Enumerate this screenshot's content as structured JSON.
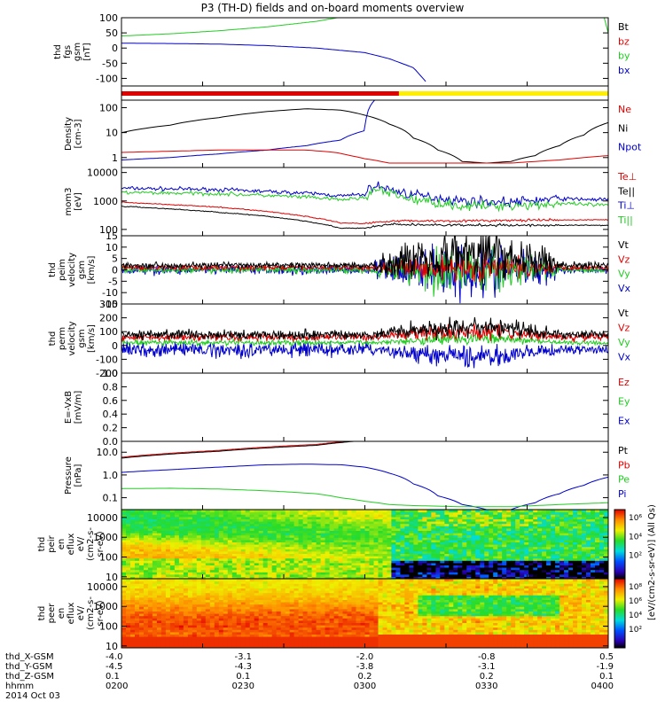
{
  "title": "P3 (TH-D) fields and on-board moments overview",
  "colors": {
    "black": "#000000",
    "red": "#e00000",
    "green": "#22cc22",
    "blue": "#0000cc",
    "yellow": "#ffee00"
  },
  "chart_data": [
    {
      "id": "fgs",
      "type": "line",
      "ylabel": [
        "thd",
        "fgs",
        "gsm",
        "[nT]"
      ],
      "ylim": [
        -125,
        100
      ],
      "yticks": [
        100,
        50,
        0,
        -50,
        -100
      ],
      "legend": [
        {
          "name": "Bt",
          "color": "black"
        },
        {
          "name": "bz",
          "color": "red"
        },
        {
          "name": "by",
          "color": "green"
        },
        {
          "name": "bx",
          "color": "blue"
        }
      ],
      "series": [
        {
          "name": "by",
          "color": "green",
          "x": [
            0,
            0.1,
            0.2,
            0.3,
            0.4,
            0.48
          ],
          "y": [
            40,
            47,
            57,
            70,
            88,
            110
          ]
        },
        {
          "name": "bx",
          "color": "blue",
          "x": [
            0,
            0.1,
            0.2,
            0.3,
            0.4,
            0.5,
            0.55,
            0.6,
            0.625
          ],
          "y": [
            16,
            15,
            13,
            8,
            0,
            -15,
            -35,
            -65,
            -110
          ]
        },
        {
          "name": "by",
          "color": "green",
          "x": [
            0.99,
            1.0
          ],
          "y": [
            110,
            50
          ]
        }
      ]
    },
    {
      "id": "flag",
      "type": "bar",
      "segments": [
        {
          "x0": 0,
          "x1": 0.57,
          "color": "red"
        },
        {
          "x0": 0.57,
          "x1": 1,
          "color": "yellow"
        }
      ]
    },
    {
      "id": "density",
      "type": "line",
      "log": true,
      "ylabel": [
        "Density",
        "[cm-3]"
      ],
      "ylim": [
        0.4,
        200
      ],
      "yticks": [
        100,
        10,
        1
      ],
      "legend": [
        {
          "name": "Ne",
          "color": "red"
        },
        {
          "name": "Ni",
          "color": "black"
        },
        {
          "name": "Npot",
          "color": "blue"
        }
      ],
      "series": [
        {
          "name": "Ni",
          "color": "black",
          "x": [
            0,
            0.1,
            0.2,
            0.3,
            0.38,
            0.45,
            0.5,
            0.55,
            0.6,
            0.65,
            0.7,
            0.75,
            0.8,
            0.85,
            0.9,
            0.95,
            1.0
          ],
          "y": [
            10,
            20,
            40,
            70,
            90,
            80,
            50,
            22,
            6,
            2,
            0.7,
            0.6,
            0.7,
            1.2,
            3,
            8,
            25
          ]
        },
        {
          "name": "Npot",
          "color": "blue",
          "x": [
            0,
            0.1,
            0.2,
            0.3,
            0.38,
            0.45,
            0.5,
            0.52
          ],
          "y": [
            0.8,
            1,
            1.4,
            2,
            3,
            5,
            12,
            200
          ]
        },
        {
          "name": "Ne",
          "color": "red",
          "x": [
            0,
            0.1,
            0.2,
            0.3,
            0.38,
            0.44,
            0.47,
            0.5,
            0.55,
            0.6,
            0.7,
            0.8,
            0.9,
            1.0
          ],
          "y": [
            1.6,
            1.8,
            2,
            2,
            2,
            1.6,
            1.2,
            0.9,
            0.6,
            0.6,
            0.6,
            0.6,
            0.8,
            1.2
          ]
        }
      ]
    },
    {
      "id": "mom",
      "type": "line",
      "log": true,
      "ylabel": [
        "mom3",
        "[eV]"
      ],
      "ylim": [
        60,
        15000
      ],
      "yticks": [
        10000,
        1000,
        100
      ],
      "legend": [
        {
          "name": "Te⊥",
          "color": "red"
        },
        {
          "name": "Te||",
          "color": "black"
        },
        {
          "name": "Ti⊥",
          "color": "blue"
        },
        {
          "name": "Ti||",
          "color": "green"
        }
      ],
      "series": [
        {
          "name": "Ti⊥",
          "color": "blue",
          "x": [
            0,
            0.2,
            0.4,
            0.45,
            0.5,
            0.52,
            0.55,
            0.6,
            0.7,
            0.8,
            0.9,
            1.0
          ],
          "y": [
            2800,
            2500,
            1800,
            1500,
            1700,
            3500,
            2500,
            1600,
            1000,
            900,
            1200,
            1100
          ],
          "noise": 0.12
        },
        {
          "name": "Ti||",
          "color": "green",
          "x": [
            0,
            0.2,
            0.4,
            0.45,
            0.5,
            0.52,
            0.55,
            0.6,
            0.7,
            0.8,
            0.9,
            1.0
          ],
          "y": [
            2000,
            1800,
            1300,
            1100,
            1300,
            2500,
            1800,
            1100,
            650,
            700,
            800,
            700
          ],
          "noise": 0.12
        },
        {
          "name": "Te⊥",
          "color": "red",
          "x": [
            0,
            0.2,
            0.4,
            0.45,
            0.5,
            0.55,
            0.7,
            1.0
          ],
          "y": [
            900,
            600,
            250,
            170,
            160,
            200,
            200,
            220
          ],
          "noise": 0.03
        },
        {
          "name": "Te||",
          "color": "black",
          "x": [
            0,
            0.2,
            0.4,
            0.45,
            0.5,
            0.55,
            0.7,
            1.0
          ],
          "y": [
            650,
            400,
            170,
            110,
            110,
            150,
            140,
            140
          ],
          "noise": 0.03
        }
      ]
    },
    {
      "id": "peim",
      "type": "line",
      "ylabel": [
        "thd",
        "peim",
        "velocity",
        "gsm",
        "[km/s]"
      ],
      "ylim": [
        -15,
        15
      ],
      "yticks": [
        15,
        10,
        5,
        0,
        -5,
        -10,
        -15
      ],
      "legend": [
        {
          "name": "Vt",
          "color": "black"
        },
        {
          "name": "Vz",
          "color": "red"
        },
        {
          "name": "Vy",
          "color": "green"
        },
        {
          "name": "Vx",
          "color": "blue"
        }
      ],
      "series": [
        {
          "name": "Vx",
          "color": "blue",
          "base": 0,
          "amp": [
            1.5,
            6,
            1.2
          ]
        },
        {
          "name": "Vy",
          "color": "green",
          "base": 0,
          "amp": [
            1.2,
            5,
            1
          ]
        },
        {
          "name": "Vz",
          "color": "red",
          "base": 1,
          "amp": [
            0.8,
            3,
            0.8
          ]
        },
        {
          "name": "Vt",
          "color": "black",
          "base": 2,
          "amp": [
            1,
            6,
            1.2
          ],
          "bump": 5
        }
      ]
    },
    {
      "id": "perm",
      "type": "line",
      "ylabel": [
        "thd",
        "perm",
        "velocity",
        "gsm",
        "[km/s]"
      ],
      "ylim": [
        -200,
        300
      ],
      "yticks": [
        300,
        200,
        100,
        0,
        -100,
        -200
      ],
      "legend": [
        {
          "name": "Vt",
          "color": "black"
        },
        {
          "name": "Vz",
          "color": "red"
        },
        {
          "name": "Vy",
          "color": "green"
        },
        {
          "name": "Vx",
          "color": "blue"
        }
      ],
      "series": [
        {
          "name": "Vx",
          "color": "blue",
          "base": -30,
          "amp": [
            40,
            40,
            25
          ],
          "shift": [
            0,
            -50,
            0
          ]
        },
        {
          "name": "Vy",
          "color": "green",
          "base": 20,
          "amp": [
            15,
            20,
            15
          ],
          "shift": [
            0,
            30,
            0
          ]
        },
        {
          "name": "Vz",
          "color": "red",
          "base": 60,
          "amp": [
            20,
            30,
            20
          ],
          "shift": [
            0,
            40,
            0
          ]
        },
        {
          "name": "Vt",
          "color": "black",
          "base": 80,
          "amp": [
            25,
            40,
            20
          ],
          "shift": [
            0,
            50,
            0
          ]
        }
      ]
    },
    {
      "id": "efield",
      "type": "line",
      "ylabel": [
        "E=-VxB",
        "[mV/m]"
      ],
      "ylim": [
        0,
        1
      ],
      "yticks": [
        1.0,
        0.8,
        0.6,
        0.4,
        0.2,
        0.0
      ],
      "legend": [
        {
          "name": "Ez",
          "color": "red"
        },
        {
          "name": "Ey",
          "color": "green"
        },
        {
          "name": "Ex",
          "color": "blue"
        }
      ],
      "series": []
    },
    {
      "id": "pressure",
      "type": "line",
      "log": true,
      "ylabel": [
        "Pressure",
        "[nPa]"
      ],
      "ylim": [
        0.03,
        30
      ],
      "yticks": [
        10,
        1,
        0.1
      ],
      "yticklabels": [
        "10.0",
        "1.0",
        "0.1"
      ],
      "legend": [
        {
          "name": "Pt",
          "color": "black"
        },
        {
          "name": "Pb",
          "color": "red"
        },
        {
          "name": "Pe",
          "color": "green"
        },
        {
          "name": "Pi",
          "color": "blue"
        }
      ],
      "series": [
        {
          "name": "Pb",
          "color": "red",
          "x": [
            0,
            0.2,
            0.4,
            0.5
          ],
          "y": [
            6,
            12,
            22,
            35
          ]
        },
        {
          "name": "Pt",
          "color": "black",
          "x": [
            0,
            0.2,
            0.4,
            0.5
          ],
          "y": [
            5.5,
            11,
            20,
            33
          ]
        },
        {
          "name": "Pi",
          "color": "blue",
          "x": [
            0,
            0.1,
            0.2,
            0.3,
            0.38,
            0.45,
            0.5,
            0.55,
            0.6,
            0.65,
            0.7,
            0.75,
            0.8,
            0.85,
            0.9,
            0.95,
            1.0
          ],
          "y": [
            1.3,
            1.7,
            2.2,
            2.8,
            3,
            2.8,
            2.2,
            1.2,
            0.4,
            0.12,
            0.05,
            0.03,
            0.03,
            0.06,
            0.15,
            0.35,
            0.8
          ]
        },
        {
          "name": "Pe",
          "color": "green",
          "x": [
            0,
            0.1,
            0.2,
            0.3,
            0.4,
            0.45,
            0.5,
            0.55,
            0.6,
            0.7,
            0.8,
            0.9,
            1.0
          ],
          "y": [
            0.25,
            0.26,
            0.24,
            0.2,
            0.15,
            0.1,
            0.07,
            0.05,
            0.045,
            0.04,
            0.04,
            0.05,
            0.06
          ]
        }
      ]
    },
    {
      "id": "peir",
      "type": "heatmap",
      "ylabel": [
        "thd",
        "peir",
        "en",
        "eflux",
        "eV/",
        "(cm2-s-",
        "sr-eV)"
      ],
      "log": true,
      "ylim": [
        8,
        25000
      ],
      "yticks": [
        10000,
        1000,
        100,
        10
      ]
    },
    {
      "id": "peer",
      "type": "heatmap",
      "ylabel": [
        "thd",
        "peer",
        "en",
        "eflux",
        "eV/",
        "(cm2-s-",
        "sr-eV)"
      ],
      "log": true,
      "ylim": [
        8,
        25000
      ],
      "yticks": [
        10000,
        1000,
        100,
        10
      ]
    }
  ],
  "colorbar": {
    "label": "[eV/(cm2-s-sr-eV)] (All Qs)",
    "ticks1": [
      "10⁶",
      "10⁴",
      "10²"
    ],
    "ticks2": [
      "10⁸",
      "10⁶",
      "10⁴",
      "10²"
    ]
  },
  "xaxis": {
    "labels": [
      "thd_X-GSM",
      "thd_Y-GSM",
      "thd_Z-GSM",
      "hhmm",
      "2014 Oct 03"
    ],
    "ticks": [
      {
        "xf": 0,
        "vals": [
          "-4.0",
          "-4.5",
          "0.1",
          "0200"
        ]
      },
      {
        "xf": 0.25,
        "vals": [
          "-3.1",
          "-4.3",
          "0.1",
          "0230"
        ]
      },
      {
        "xf": 0.5,
        "vals": [
          "-2.0",
          "-3.8",
          "0.2",
          "0300"
        ]
      },
      {
        "xf": 0.75,
        "vals": [
          "-0.8",
          "-3.1",
          "0.2",
          "0330"
        ]
      },
      {
        "xf": 1,
        "vals": [
          "0.5",
          "-1.9",
          "0.1",
          "0400"
        ]
      }
    ]
  }
}
